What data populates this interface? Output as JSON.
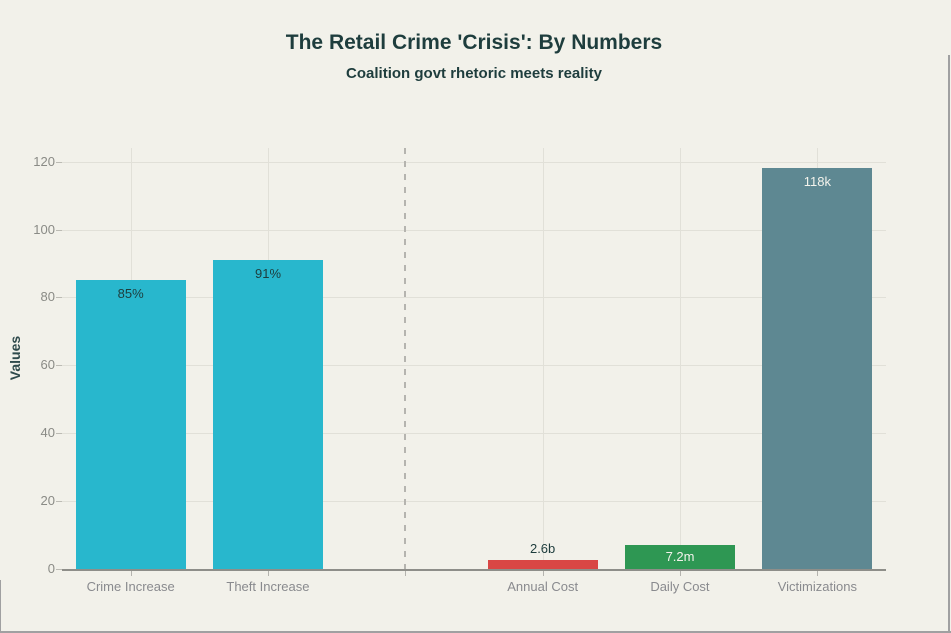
{
  "chart_data": {
    "type": "bar",
    "title": "The Retail Crime 'Crisis': By Numbers",
    "subtitle": "Coalition govt rhetoric meets reality",
    "ylabel": "Values",
    "ylim": [
      0,
      124
    ],
    "yticks": [
      0,
      20,
      40,
      60,
      80,
      100,
      120
    ],
    "num_slots": 6,
    "separator_slot": 2,
    "categories": [
      "Crime Increase",
      "Theft Increase",
      "Annual Cost",
      "Daily Cost",
      "Victimizations"
    ],
    "bars": [
      {
        "category": "Crime Increase",
        "value": 85,
        "label": "85%",
        "slot": 0,
        "color": "#28b7cd",
        "label_color": "#1e3d3d",
        "label_inside": true
      },
      {
        "category": "Theft Increase",
        "value": 91,
        "label": "91%",
        "slot": 1,
        "color": "#28b7cd",
        "label_color": "#1e3d3d",
        "label_inside": true
      },
      {
        "category": "Annual Cost",
        "value": 2.6,
        "label": "2.6b",
        "slot": 3,
        "color": "#d94745",
        "label_color": "#1e3d3d",
        "label_inside": false
      },
      {
        "category": "Daily Cost",
        "value": 7.2,
        "label": "7.2m",
        "slot": 4,
        "color": "#2e9753",
        "label_color": "#f4f3ec",
        "label_inside": true
      },
      {
        "category": "Victimizations",
        "value": 118,
        "label": "118k",
        "slot": 5,
        "color": "#5e8892",
        "label_color": "#f4f3ec",
        "label_inside": true
      }
    ],
    "colors": {
      "background": "#f2f1ea",
      "grid": "#e1e0d8",
      "axis": "#8e8e89",
      "tick_label": "#8a8b86",
      "title": "#1e3d3d",
      "separator": "#b5b4af",
      "window_edge": "#a0a0a1"
    },
    "grid": true,
    "legend": false
  }
}
